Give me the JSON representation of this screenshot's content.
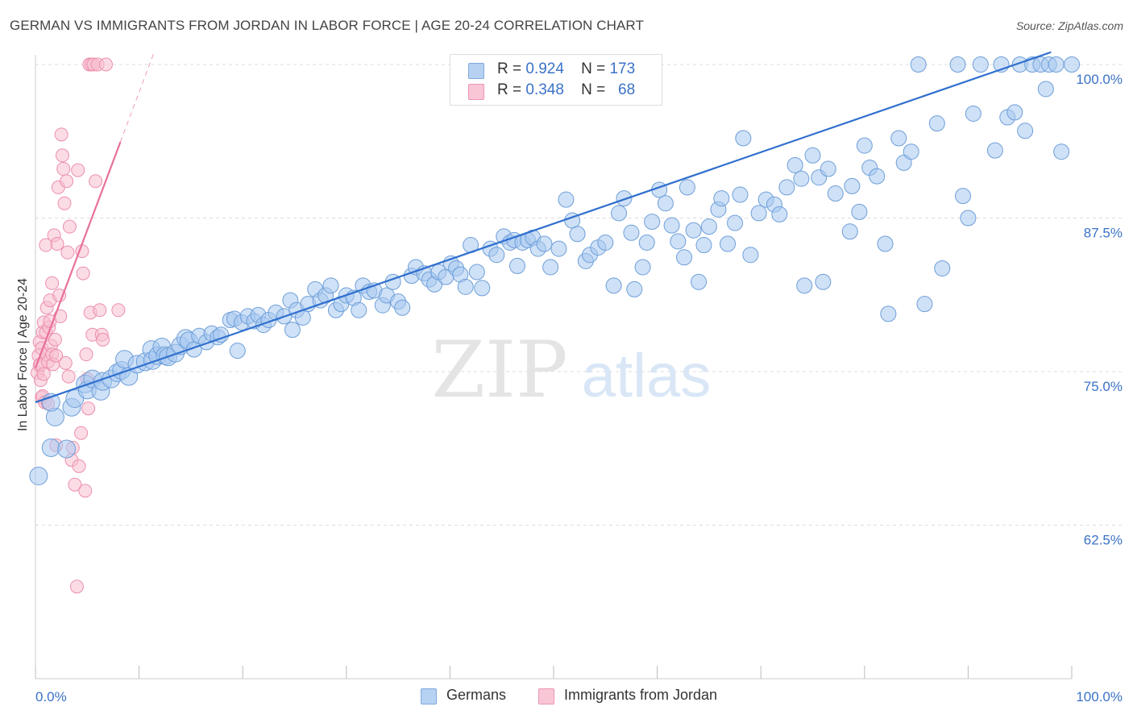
{
  "title": "GERMAN VS IMMIGRANTS FROM JORDAN IN LABOR FORCE | AGE 20-24 CORRELATION CHART",
  "source": "Source: ZipAtlas.com",
  "watermark": {
    "zip": "ZIP",
    "atlas": "atlas"
  },
  "legend": {
    "r_label": "R =",
    "n_label": "N =",
    "rows": [
      {
        "r": "0.924",
        "n": "173"
      },
      {
        "r": "0.348",
        "n": "68"
      }
    ]
  },
  "colors": {
    "germans_fill": "#a8c8f0",
    "germans_stroke": "#6e9fd8",
    "germans_line": "#2f6fce",
    "jordan_fill": "#f7bfd0",
    "jordan_stroke": "#ec8fae",
    "jordan_line": "#e8709a",
    "tick_text": "#3b72c7",
    "grid": "#dddddd"
  },
  "chart_data": {
    "type": "scatter",
    "title": "GERMAN VS IMMIGRANTS FROM JORDAN IN LABOR FORCE | AGE 20-24 CORRELATION CHART",
    "xlabel": "",
    "ylabel": "In Labor Force | Age 20-24",
    "xlim": [
      0,
      100
    ],
    "ylim": [
      50,
      100
    ],
    "x_tick_labels": [
      "0.0%",
      "100.0%"
    ],
    "y_ticks": [
      62.5,
      75.0,
      87.5,
      100.0
    ],
    "y_tick_labels": [
      "62.5%",
      "75.0%",
      "87.5%",
      "100.0%"
    ],
    "grid": "horizontal dashed",
    "legend_position": "bottom",
    "series": [
      {
        "name": "Germans",
        "r": 0.924,
        "n": 173,
        "trend": {
          "x": [
            0,
            98
          ],
          "y": [
            72.5,
            101.0
          ]
        },
        "points": [
          [
            0.3,
            66.5
          ],
          [
            1.5,
            68.8
          ],
          [
            1.9,
            71.3
          ],
          [
            3.0,
            68.7
          ],
          [
            1.5,
            72.5
          ],
          [
            3.5,
            72.1
          ],
          [
            3.8,
            72.8
          ],
          [
            4.8,
            74.0
          ],
          [
            5.0,
            73.5
          ],
          [
            5.5,
            74.4
          ],
          [
            6.3,
            73.4
          ],
          [
            6.5,
            74.2
          ],
          [
            7.3,
            74.4
          ],
          [
            7.9,
            74.9
          ],
          [
            8.3,
            75.1
          ],
          [
            8.6,
            76.0
          ],
          [
            9.0,
            74.6
          ],
          [
            9.8,
            75.6
          ],
          [
            10.6,
            75.8
          ],
          [
            11.2,
            76.8
          ],
          [
            11.3,
            75.9
          ],
          [
            11.8,
            76.3
          ],
          [
            12.2,
            77.0
          ],
          [
            12.5,
            76.3
          ],
          [
            12.8,
            76.2
          ],
          [
            13.5,
            76.5
          ],
          [
            14.0,
            77.1
          ],
          [
            14.5,
            77.7
          ],
          [
            14.8,
            77.5
          ],
          [
            15.3,
            76.8
          ],
          [
            15.8,
            77.9
          ],
          [
            16.5,
            77.4
          ],
          [
            17.0,
            78.1
          ],
          [
            17.6,
            77.8
          ],
          [
            17.9,
            78.0
          ],
          [
            18.8,
            79.2
          ],
          [
            19.2,
            79.3
          ],
          [
            19.5,
            76.7
          ],
          [
            19.9,
            79.0
          ],
          [
            20.5,
            79.5
          ],
          [
            21.1,
            79.1
          ],
          [
            21.5,
            79.6
          ],
          [
            22.0,
            78.8
          ],
          [
            22.5,
            79.2
          ],
          [
            23.2,
            79.8
          ],
          [
            24.0,
            79.5
          ],
          [
            24.6,
            80.8
          ],
          [
            24.8,
            78.4
          ],
          [
            25.2,
            80.0
          ],
          [
            25.8,
            79.4
          ],
          [
            26.3,
            80.5
          ],
          [
            27.0,
            81.7
          ],
          [
            27.5,
            80.8
          ],
          [
            28.0,
            81.2
          ],
          [
            28.5,
            82.0
          ],
          [
            29.0,
            80.0
          ],
          [
            29.5,
            80.5
          ],
          [
            30.0,
            81.2
          ],
          [
            30.7,
            81.0
          ],
          [
            31.2,
            80.0
          ],
          [
            31.6,
            82.0
          ],
          [
            32.2,
            81.5
          ],
          [
            32.7,
            81.6
          ],
          [
            33.5,
            80.4
          ],
          [
            33.9,
            81.2
          ],
          [
            34.5,
            82.3
          ],
          [
            35.0,
            80.7
          ],
          [
            35.4,
            80.2
          ],
          [
            36.3,
            82.8
          ],
          [
            36.7,
            83.5
          ],
          [
            37.5,
            83.0
          ],
          [
            38.0,
            82.5
          ],
          [
            38.5,
            82.1
          ],
          [
            38.9,
            83.1
          ],
          [
            39.6,
            82.7
          ],
          [
            40.1,
            83.8
          ],
          [
            40.6,
            83.4
          ],
          [
            41.0,
            82.9
          ],
          [
            41.5,
            81.9
          ],
          [
            42.0,
            85.3
          ],
          [
            42.6,
            83.1
          ],
          [
            43.1,
            81.8
          ],
          [
            43.9,
            85.0
          ],
          [
            44.5,
            84.5
          ],
          [
            45.2,
            86.0
          ],
          [
            45.8,
            85.5
          ],
          [
            46.2,
            85.7
          ],
          [
            46.5,
            83.6
          ],
          [
            47.0,
            85.5
          ],
          [
            47.5,
            85.7
          ],
          [
            48.0,
            85.9
          ],
          [
            48.5,
            85.0
          ],
          [
            49.1,
            85.4
          ],
          [
            49.7,
            83.5
          ],
          [
            50.5,
            85.0
          ],
          [
            51.2,
            89.0
          ],
          [
            51.8,
            87.3
          ],
          [
            52.3,
            86.2
          ],
          [
            53.1,
            84.0
          ],
          [
            53.5,
            84.5
          ],
          [
            54.3,
            85.1
          ],
          [
            55.0,
            85.5
          ],
          [
            55.8,
            82.0
          ],
          [
            56.3,
            87.9
          ],
          [
            56.8,
            89.1
          ],
          [
            57.5,
            86.3
          ],
          [
            57.8,
            81.7
          ],
          [
            58.6,
            83.5
          ],
          [
            59.0,
            85.5
          ],
          [
            59.5,
            87.2
          ],
          [
            60.2,
            89.8
          ],
          [
            60.8,
            88.7
          ],
          [
            61.4,
            86.9
          ],
          [
            62.0,
            85.6
          ],
          [
            62.6,
            84.3
          ],
          [
            62.9,
            90.0
          ],
          [
            63.5,
            86.5
          ],
          [
            64.0,
            82.3
          ],
          [
            64.5,
            85.3
          ],
          [
            65.0,
            86.8
          ],
          [
            65.9,
            88.2
          ],
          [
            66.2,
            89.1
          ],
          [
            66.8,
            85.4
          ],
          [
            67.5,
            87.1
          ],
          [
            68.0,
            89.4
          ],
          [
            68.3,
            94.0
          ],
          [
            69.0,
            84.5
          ],
          [
            69.8,
            87.9
          ],
          [
            70.5,
            89.0
          ],
          [
            71.3,
            88.6
          ],
          [
            71.8,
            87.8
          ],
          [
            72.5,
            90.0
          ],
          [
            73.3,
            91.8
          ],
          [
            73.9,
            90.7
          ],
          [
            74.2,
            82.0
          ],
          [
            75.0,
            92.6
          ],
          [
            75.6,
            90.8
          ],
          [
            76.0,
            82.3
          ],
          [
            76.5,
            91.5
          ],
          [
            77.2,
            89.5
          ],
          [
            78.6,
            86.4
          ],
          [
            78.8,
            90.1
          ],
          [
            79.5,
            88.0
          ],
          [
            80.0,
            93.4
          ],
          [
            80.5,
            91.6
          ],
          [
            81.2,
            90.9
          ],
          [
            82.0,
            85.4
          ],
          [
            82.3,
            79.7
          ],
          [
            83.3,
            94.0
          ],
          [
            83.8,
            92.0
          ],
          [
            84.5,
            92.9
          ],
          [
            85.2,
            100.0
          ],
          [
            85.8,
            80.5
          ],
          [
            87.0,
            95.2
          ],
          [
            87.5,
            83.4
          ],
          [
            89.0,
            100.0
          ],
          [
            89.5,
            89.3
          ],
          [
            90.0,
            87.5
          ],
          [
            90.5,
            96.0
          ],
          [
            91.2,
            100.0
          ],
          [
            92.6,
            93.0
          ],
          [
            93.2,
            100.0
          ],
          [
            93.8,
            95.7
          ],
          [
            94.5,
            96.1
          ],
          [
            95.0,
            100.0
          ],
          [
            95.5,
            94.6
          ],
          [
            96.2,
            100.0
          ],
          [
            97.0,
            100.0
          ],
          [
            97.5,
            98.0
          ],
          [
            97.8,
            100.0
          ],
          [
            98.5,
            100.0
          ],
          [
            99.0,
            92.9
          ],
          [
            100.0,
            100.0
          ]
        ]
      },
      {
        "name": "Immigrants from Jordan",
        "r": 0.348,
        "n": 68,
        "trend": {
          "x": [
            0,
            8.2
          ],
          "y": [
            75.3,
            93.7
          ]
        },
        "trend_dashed": {
          "x": [
            8.2,
            11.5
          ],
          "y": [
            93.7,
            101.1
          ]
        },
        "points": [
          [
            0.2,
            74.9
          ],
          [
            0.3,
            76.3
          ],
          [
            0.4,
            77.4
          ],
          [
            0.4,
            75.5
          ],
          [
            0.5,
            74.3
          ],
          [
            0.5,
            75.6
          ],
          [
            0.6,
            72.9
          ],
          [
            0.6,
            76.9
          ],
          [
            0.7,
            73.0
          ],
          [
            0.7,
            78.2
          ],
          [
            0.8,
            79.0
          ],
          [
            0.8,
            74.8
          ],
          [
            0.9,
            72.5
          ],
          [
            1.0,
            85.3
          ],
          [
            1.0,
            78.2
          ],
          [
            1.1,
            80.2
          ],
          [
            1.1,
            76.4
          ],
          [
            1.2,
            72.4
          ],
          [
            1.2,
            75.8
          ],
          [
            1.3,
            78.6
          ],
          [
            1.4,
            79.1
          ],
          [
            1.4,
            80.8
          ],
          [
            1.5,
            77.1
          ],
          [
            1.6,
            82.2
          ],
          [
            1.6,
            76.4
          ],
          [
            1.7,
            75.6
          ],
          [
            1.8,
            86.1
          ],
          [
            1.9,
            77.6
          ],
          [
            2.0,
            69.0
          ],
          [
            2.0,
            76.3
          ],
          [
            2.1,
            85.4
          ],
          [
            2.2,
            90.0
          ],
          [
            2.3,
            81.2
          ],
          [
            2.4,
            79.5
          ],
          [
            2.5,
            94.3
          ],
          [
            2.6,
            92.6
          ],
          [
            2.7,
            91.5
          ],
          [
            2.8,
            88.7
          ],
          [
            2.9,
            75.7
          ],
          [
            3.0,
            90.5
          ],
          [
            3.1,
            84.7
          ],
          [
            3.2,
            74.6
          ],
          [
            3.3,
            86.8
          ],
          [
            3.5,
            67.8
          ],
          [
            3.6,
            68.8
          ],
          [
            3.8,
            65.8
          ],
          [
            4.0,
            57.5
          ],
          [
            4.1,
            91.4
          ],
          [
            4.2,
            67.3
          ],
          [
            4.4,
            70.0
          ],
          [
            4.5,
            84.8
          ],
          [
            4.6,
            83.0
          ],
          [
            4.8,
            65.3
          ],
          [
            4.9,
            76.4
          ],
          [
            5.0,
            74.4
          ],
          [
            5.1,
            72.0
          ],
          [
            5.2,
            100.0
          ],
          [
            5.3,
            79.8
          ],
          [
            5.4,
            100.0
          ],
          [
            5.5,
            78.0
          ],
          [
            5.6,
            100.0
          ],
          [
            5.8,
            90.5
          ],
          [
            6.0,
            100.0
          ],
          [
            6.2,
            80.0
          ],
          [
            6.4,
            78.0
          ],
          [
            6.5,
            77.6
          ],
          [
            6.8,
            100.0
          ],
          [
            8.0,
            80.0
          ]
        ]
      }
    ]
  },
  "bottom_legend": [
    "Germans",
    "Immigrants from Jordan"
  ]
}
